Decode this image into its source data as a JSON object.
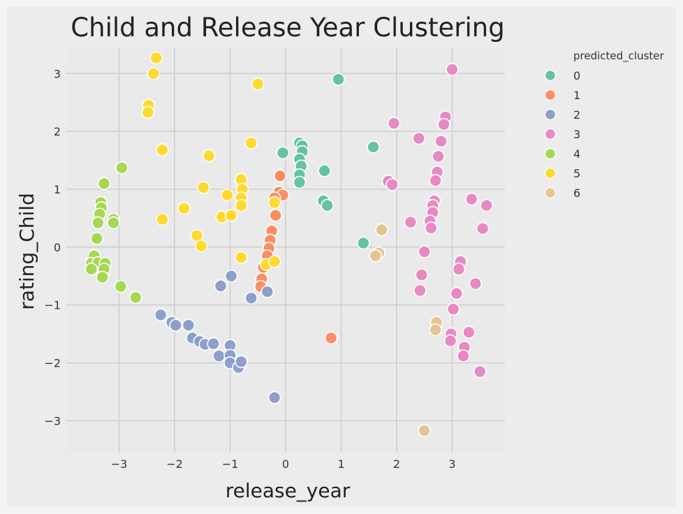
{
  "chart_data": {
    "type": "scatter",
    "title": "Child and Release Year Clustering",
    "xlabel": "release_year",
    "ylabel": "rating_Child",
    "xlim": [
      -3.95,
      3.95
    ],
    "ylim": [
      -3.55,
      3.45
    ],
    "xticks": [
      -3,
      -2,
      -1,
      0,
      1,
      2,
      3
    ],
    "yticks": [
      -3,
      -2,
      -1,
      0,
      1,
      2,
      3
    ],
    "xtick_labels": [
      "−3",
      "−2",
      "−1",
      "0",
      "1",
      "2",
      "3"
    ],
    "ytick_labels": [
      "−3",
      "−2",
      "−1",
      "0",
      "1",
      "2",
      "3"
    ],
    "grid": true,
    "legend": {
      "title": "predicted_cluster",
      "placement": "right, outside plot"
    },
    "series": [
      {
        "name": "0",
        "color": "#66c2a5",
        "points": [
          [
            -0.05,
            1.63
          ],
          [
            0.25,
            1.8
          ],
          [
            0.3,
            1.75
          ],
          [
            0.3,
            1.65
          ],
          [
            0.25,
            1.52
          ],
          [
            0.28,
            1.4
          ],
          [
            0.25,
            1.25
          ],
          [
            0.25,
            1.12
          ],
          [
            0.7,
            1.32
          ],
          [
            0.68,
            0.8
          ],
          [
            0.75,
            0.72
          ],
          [
            0.95,
            2.9
          ],
          [
            1.58,
            1.73
          ],
          [
            1.4,
            0.07
          ]
        ]
      },
      {
        "name": "1",
        "color": "#fc8d62",
        "points": [
          [
            -0.1,
            1.23
          ],
          [
            -0.12,
            0.95
          ],
          [
            -0.05,
            0.9
          ],
          [
            -0.2,
            0.85
          ],
          [
            -0.18,
            0.55
          ],
          [
            -0.25,
            0.28
          ],
          [
            -0.28,
            0.12
          ],
          [
            -0.3,
            -0.02
          ],
          [
            -0.33,
            -0.15
          ],
          [
            -0.4,
            -0.35
          ],
          [
            -0.43,
            -0.55
          ],
          [
            -0.45,
            -0.68
          ],
          [
            0.82,
            -1.57
          ]
        ]
      },
      {
        "name": "2",
        "color": "#8da0cb",
        "points": [
          [
            -2.25,
            -1.17
          ],
          [
            -2.05,
            -1.3
          ],
          [
            -1.98,
            -1.35
          ],
          [
            -1.75,
            -1.35
          ],
          [
            -1.68,
            -1.57
          ],
          [
            -1.55,
            -1.63
          ],
          [
            -1.45,
            -1.68
          ],
          [
            -1.3,
            -1.67
          ],
          [
            -1.2,
            -1.88
          ],
          [
            -1.0,
            -1.7
          ],
          [
            -1.0,
            -1.87
          ],
          [
            -1.0,
            -2.0
          ],
          [
            -0.85,
            -2.08
          ],
          [
            -0.8,
            -1.98
          ],
          [
            -1.17,
            -0.67
          ],
          [
            -0.98,
            -0.5
          ],
          [
            -0.62,
            -0.88
          ],
          [
            -0.33,
            -0.77
          ],
          [
            -0.2,
            -2.6
          ]
        ]
      },
      {
        "name": "3",
        "color": "#e78ac3",
        "points": [
          [
            3.0,
            3.07
          ],
          [
            1.95,
            2.14
          ],
          [
            2.4,
            1.88
          ],
          [
            2.88,
            2.25
          ],
          [
            2.85,
            2.12
          ],
          [
            2.8,
            1.83
          ],
          [
            2.75,
            1.57
          ],
          [
            2.73,
            1.3
          ],
          [
            2.7,
            1.15
          ],
          [
            1.85,
            1.14
          ],
          [
            1.92,
            1.08
          ],
          [
            2.68,
            0.8
          ],
          [
            2.65,
            0.72
          ],
          [
            2.65,
            0.6
          ],
          [
            2.6,
            0.45
          ],
          [
            2.62,
            0.33
          ],
          [
            2.25,
            0.43
          ],
          [
            2.5,
            -0.08
          ],
          [
            2.45,
            -0.48
          ],
          [
            2.42,
            -0.75
          ],
          [
            3.35,
            0.83
          ],
          [
            3.62,
            0.72
          ],
          [
            3.55,
            0.32
          ],
          [
            3.15,
            -0.25
          ],
          [
            3.12,
            -0.38
          ],
          [
            3.42,
            -0.63
          ],
          [
            3.08,
            -0.8
          ],
          [
            3.02,
            -1.07
          ],
          [
            3.3,
            -1.47
          ],
          [
            2.98,
            -1.5
          ],
          [
            2.97,
            -1.62
          ],
          [
            3.22,
            -1.73
          ],
          [
            3.2,
            -1.88
          ],
          [
            3.5,
            -2.15
          ]
        ]
      },
      {
        "name": "4",
        "color": "#a6d854",
        "points": [
          [
            -2.95,
            1.37
          ],
          [
            -3.27,
            1.1
          ],
          [
            -3.33,
            0.77
          ],
          [
            -3.32,
            0.68
          ],
          [
            -3.35,
            0.57
          ],
          [
            -3.1,
            0.48
          ],
          [
            -3.1,
            0.42
          ],
          [
            -3.38,
            0.42
          ],
          [
            -3.4,
            0.15
          ],
          [
            -3.45,
            -0.15
          ],
          [
            -3.5,
            -0.28
          ],
          [
            -3.38,
            -0.27
          ],
          [
            -3.25,
            -0.28
          ],
          [
            -3.5,
            -0.38
          ],
          [
            -3.27,
            -0.38
          ],
          [
            -3.3,
            -0.52
          ],
          [
            -2.97,
            -0.68
          ],
          [
            -2.7,
            -0.87
          ]
        ]
      },
      {
        "name": "5",
        "color": "#ffd92f",
        "points": [
          [
            -2.33,
            3.27
          ],
          [
            -2.38,
            3.0
          ],
          [
            -2.47,
            2.45
          ],
          [
            -2.48,
            2.33
          ],
          [
            -2.22,
            1.68
          ],
          [
            -0.5,
            2.82
          ],
          [
            -0.62,
            1.8
          ],
          [
            -1.38,
            1.58
          ],
          [
            -0.8,
            1.17
          ],
          [
            -1.48,
            1.03
          ],
          [
            -0.78,
            1.0
          ],
          [
            -0.8,
            0.85
          ],
          [
            -0.8,
            0.72
          ],
          [
            -1.05,
            0.9
          ],
          [
            -1.83,
            0.67
          ],
          [
            -1.15,
            0.52
          ],
          [
            -0.98,
            0.55
          ],
          [
            -0.2,
            0.77
          ],
          [
            -2.22,
            0.48
          ],
          [
            -1.6,
            0.2
          ],
          [
            -1.52,
            0.02
          ],
          [
            -0.8,
            -0.18
          ],
          [
            -0.35,
            -0.3
          ],
          [
            -0.2,
            -0.25
          ]
        ]
      },
      {
        "name": "6",
        "color": "#e5c494",
        "points": [
          [
            1.73,
            0.3
          ],
          [
            1.68,
            -0.1
          ],
          [
            1.62,
            -0.15
          ],
          [
            2.72,
            -1.3
          ],
          [
            2.7,
            -1.43
          ],
          [
            2.5,
            -3.17
          ]
        ]
      }
    ]
  }
}
